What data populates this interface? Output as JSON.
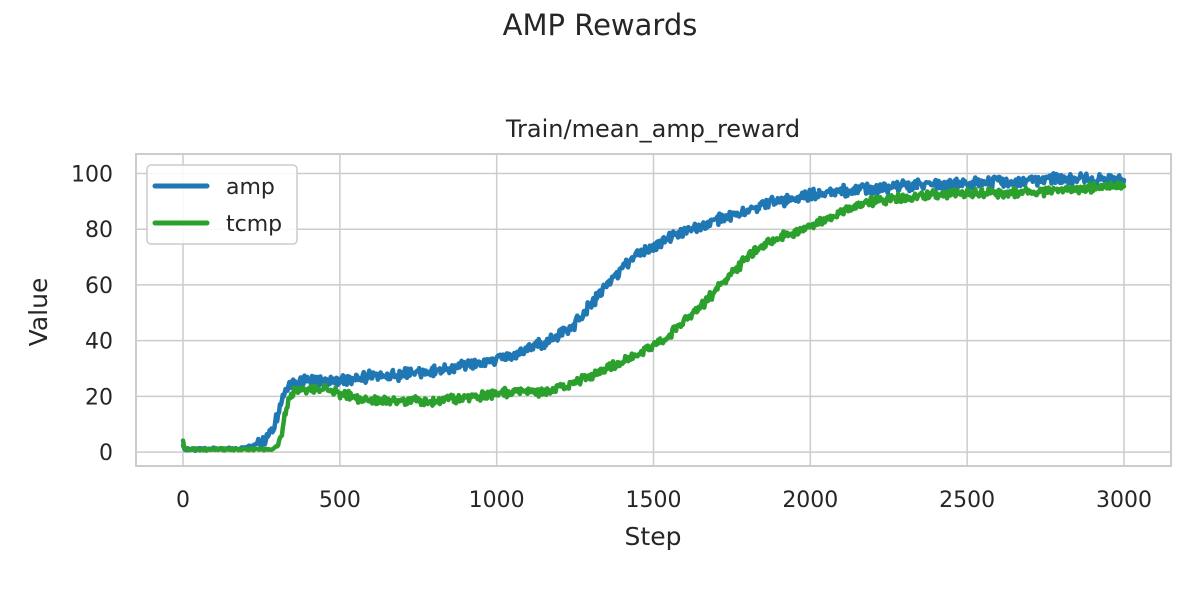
{
  "figure": {
    "suptitle": "AMP Rewards"
  },
  "chart_data": {
    "type": "line",
    "title": "Train/mean_amp_reward",
    "xlabel": "Step",
    "ylabel": "Value",
    "xlim": [
      -150,
      3150
    ],
    "ylim": [
      -5,
      107
    ],
    "xticks": [
      0,
      500,
      1000,
      1500,
      2000,
      2500,
      3000
    ],
    "xtick_labels": [
      "0",
      "500",
      "1000",
      "1500",
      "2000",
      "2500",
      "3000"
    ],
    "yticks": [
      0,
      20,
      40,
      60,
      80,
      100
    ],
    "ytick_labels": [
      "0",
      "20",
      "40",
      "60",
      "80",
      "100"
    ],
    "grid": true,
    "legend_position": "upper-left",
    "series": [
      {
        "name": "amp",
        "color": "#1f77b4",
        "noise": 1.6,
        "points": [
          [
            0,
            3
          ],
          [
            5,
            1
          ],
          [
            100,
            1
          ],
          [
            200,
            1.5
          ],
          [
            260,
            4
          ],
          [
            290,
            9
          ],
          [
            310,
            17
          ],
          [
            330,
            23
          ],
          [
            360,
            25
          ],
          [
            400,
            26
          ],
          [
            450,
            25
          ],
          [
            500,
            25.5
          ],
          [
            600,
            27
          ],
          [
            700,
            28
          ],
          [
            800,
            29
          ],
          [
            900,
            31
          ],
          [
            1000,
            33
          ],
          [
            1050,
            35
          ],
          [
            1100,
            37
          ],
          [
            1150,
            39
          ],
          [
            1200,
            42
          ],
          [
            1250,
            46
          ],
          [
            1300,
            53
          ],
          [
            1350,
            60
          ],
          [
            1400,
            66
          ],
          [
            1450,
            71
          ],
          [
            1500,
            74
          ],
          [
            1550,
            77
          ],
          [
            1600,
            79
          ],
          [
            1650,
            81
          ],
          [
            1700,
            83
          ],
          [
            1750,
            85
          ],
          [
            1800,
            87
          ],
          [
            1850,
            89
          ],
          [
            1900,
            90
          ],
          [
            1950,
            91
          ],
          [
            2000,
            92
          ],
          [
            2100,
            93.5
          ],
          [
            2200,
            94.5
          ],
          [
            2300,
            95.5
          ],
          [
            2400,
            96
          ],
          [
            2500,
            96.5
          ],
          [
            2600,
            97
          ],
          [
            2700,
            98
          ],
          [
            2800,
            98
          ],
          [
            2900,
            98
          ],
          [
            3000,
            97.5
          ]
        ]
      },
      {
        "name": "tcmp",
        "color": "#2ca02c",
        "noise": 1.3,
        "points": [
          [
            0,
            4
          ],
          [
            5,
            1
          ],
          [
            100,
            1
          ],
          [
            200,
            1
          ],
          [
            280,
            1
          ],
          [
            300,
            2
          ],
          [
            315,
            6
          ],
          [
            325,
            14
          ],
          [
            340,
            20
          ],
          [
            370,
            23
          ],
          [
            400,
            22
          ],
          [
            450,
            23
          ],
          [
            500,
            21
          ],
          [
            550,
            19.5
          ],
          [
            600,
            18.5
          ],
          [
            700,
            18.5
          ],
          [
            800,
            18.5
          ],
          [
            900,
            19.5
          ],
          [
            1000,
            21
          ],
          [
            1100,
            22
          ],
          [
            1150,
            21.5
          ],
          [
            1200,
            23
          ],
          [
            1250,
            25
          ],
          [
            1300,
            27.5
          ],
          [
            1350,
            30
          ],
          [
            1400,
            32.5
          ],
          [
            1450,
            35
          ],
          [
            1500,
            38.5
          ],
          [
            1550,
            42
          ],
          [
            1600,
            47
          ],
          [
            1650,
            52
          ],
          [
            1700,
            58
          ],
          [
            1750,
            64
          ],
          [
            1800,
            70
          ],
          [
            1850,
            74
          ],
          [
            1900,
            77
          ],
          [
            1950,
            79
          ],
          [
            2000,
            81
          ],
          [
            2050,
            84
          ],
          [
            2100,
            86
          ],
          [
            2150,
            88.5
          ],
          [
            2200,
            90
          ],
          [
            2300,
            91.5
          ],
          [
            2400,
            92.5
          ],
          [
            2500,
            93
          ],
          [
            2600,
            93
          ],
          [
            2700,
            93
          ],
          [
            2800,
            94
          ],
          [
            2900,
            95
          ],
          [
            3000,
            95.5
          ]
        ]
      }
    ]
  }
}
